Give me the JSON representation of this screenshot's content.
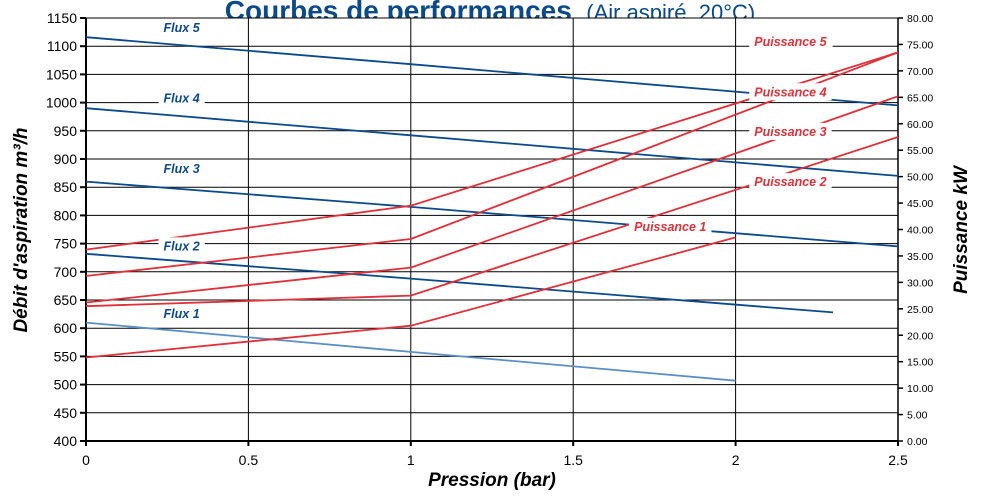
{
  "chart_data": {
    "type": "line",
    "title": "Courbes de performances",
    "subtitle": "(Air aspiré, 20°C)",
    "xlabel": "Pression (bar)",
    "ylabel": "Débit d'aspiration  m³/h",
    "y2label": "Puissance kW",
    "xlim": [
      0,
      2.5
    ],
    "ylim": [
      400,
      1150
    ],
    "y2lim": [
      0,
      80
    ],
    "x_ticks": [
      "0",
      "0.5",
      "1",
      "1.5",
      "2",
      "2.5"
    ],
    "y_ticks": [
      "400",
      "450",
      "500",
      "550",
      "600",
      "650",
      "700",
      "750",
      "800",
      "850",
      "900",
      "950",
      "1000",
      "1050",
      "1100",
      "1150"
    ],
    "y2_ticks": [
      "0.00",
      "5.00",
      "10.00",
      "15.00",
      "20.00",
      "25.00",
      "30.00",
      "35.00",
      "40.00",
      "45.00",
      "50.00",
      "55.00",
      "60.00",
      "65.00",
      "70.00",
      "75.00",
      "80.00"
    ],
    "grid": true,
    "colors": {
      "flux": "#0b4a8a",
      "flux1": "#5b8fc4",
      "puissance": "#e0303a",
      "title": "#0b4a8a"
    },
    "series": [
      {
        "name": "Flux 1",
        "axis": "left",
        "x": [
          0,
          1,
          2
        ],
        "y": [
          610,
          558,
          507
        ]
      },
      {
        "name": "Flux 2",
        "axis": "left",
        "x": [
          0,
          1,
          2.3
        ],
        "y": [
          732,
          688,
          628
        ]
      },
      {
        "name": "Flux 3",
        "axis": "left",
        "x": [
          0,
          1,
          2.5
        ],
        "y": [
          860,
          815,
          745
        ]
      },
      {
        "name": "Flux 4",
        "axis": "left",
        "x": [
          0,
          1,
          2.5
        ],
        "y": [
          990,
          942,
          870
        ]
      },
      {
        "name": "Flux 5",
        "axis": "left",
        "x": [
          0,
          1,
          2.5
        ],
        "y": [
          1116,
          1068,
          995
        ]
      },
      {
        "name": "Puissance 1",
        "axis": "right",
        "x": [
          0,
          1,
          2
        ],
        "y": [
          15.8,
          21.8,
          38.5
        ]
      },
      {
        "name": "Puissance 2",
        "axis": "right",
        "x": [
          0,
          1,
          2.5
        ],
        "y": [
          25.5,
          27.5,
          57.5
        ]
      },
      {
        "name": "Puissance 3",
        "axis": "right",
        "x": [
          0,
          1,
          2.5
        ],
        "y": [
          26.2,
          32.8,
          65.2
        ]
      },
      {
        "name": "Puissance 4",
        "axis": "right",
        "x": [
          0,
          1,
          2.5
        ],
        "y": [
          31.2,
          38.2,
          73.5
        ]
      },
      {
        "name": "Puissance 5",
        "axis": "right",
        "x": [
          0,
          1,
          2.5
        ],
        "y": [
          36.2,
          44.5,
          73.5
        ]
      }
    ]
  }
}
